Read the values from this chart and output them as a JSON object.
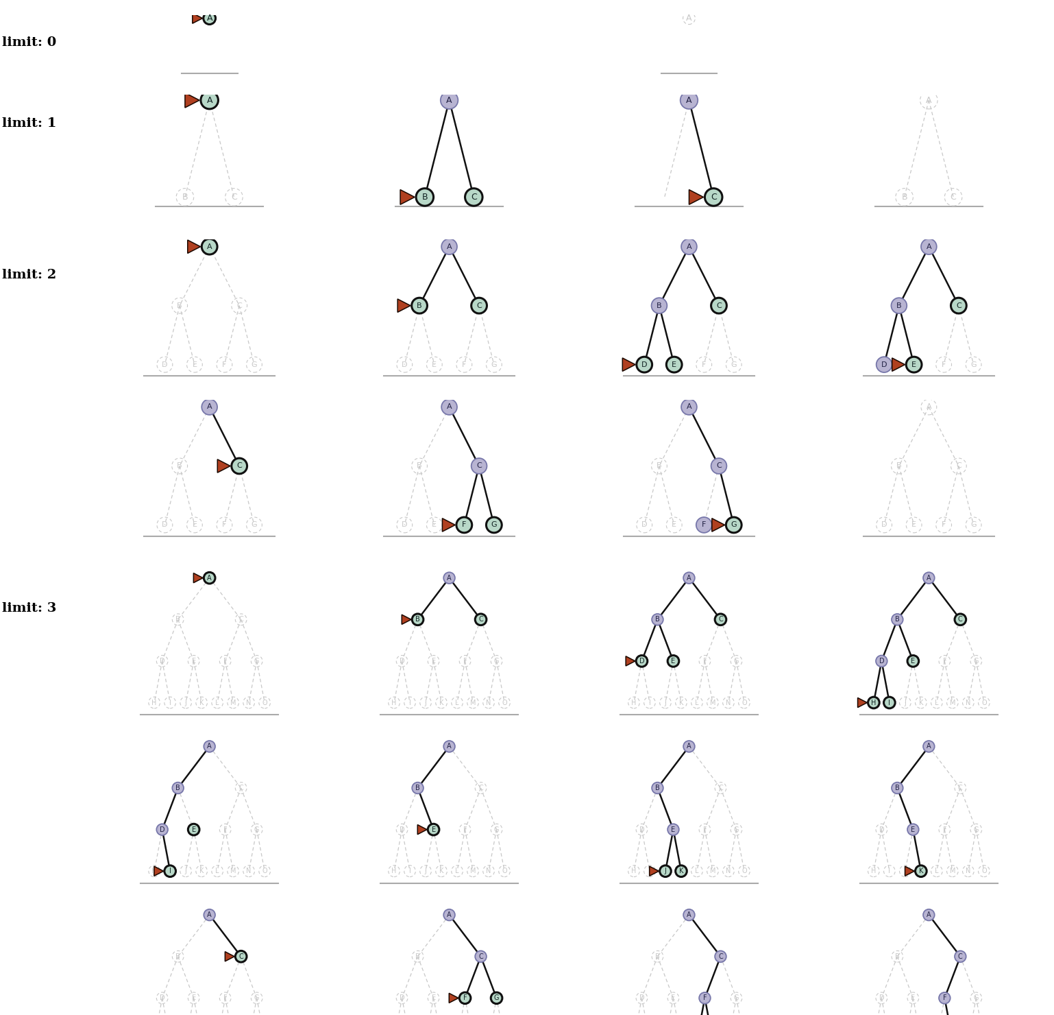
{
  "colors": {
    "frontier_fill": "#c8ddd4",
    "frontier_edge": "#111111",
    "expanded_fill": "#b8b4d0",
    "expanded_edge": "#777799",
    "ghost_edge": "#cccccc",
    "solid_edge": "#111111",
    "dashed_edge": "#bbbbbb",
    "triangle_fill": "#b04020",
    "triangle_edge": "#1a0a00",
    "bottom_line": "#999999"
  },
  "tree_nodes": {
    "1": [
      "A"
    ],
    "2": [
      "A",
      "B",
      "C"
    ],
    "3": [
      "A",
      "B",
      "C",
      "D",
      "E",
      "F",
      "G"
    ],
    "4": [
      "A",
      "B",
      "C",
      "D",
      "E",
      "F",
      "G",
      "H",
      "I",
      "J",
      "K",
      "L",
      "M",
      "N",
      "O"
    ]
  },
  "tree_edges": {
    "all": [
      [
        "A",
        "B"
      ],
      [
        "A",
        "C"
      ],
      [
        "B",
        "D"
      ],
      [
        "B",
        "E"
      ],
      [
        "C",
        "F"
      ],
      [
        "C",
        "G"
      ],
      [
        "D",
        "H"
      ],
      [
        "D",
        "I"
      ],
      [
        "E",
        "J"
      ],
      [
        "E",
        "K"
      ],
      [
        "F",
        "L"
      ],
      [
        "F",
        "M"
      ],
      [
        "G",
        "N"
      ],
      [
        "G",
        "O"
      ]
    ]
  }
}
